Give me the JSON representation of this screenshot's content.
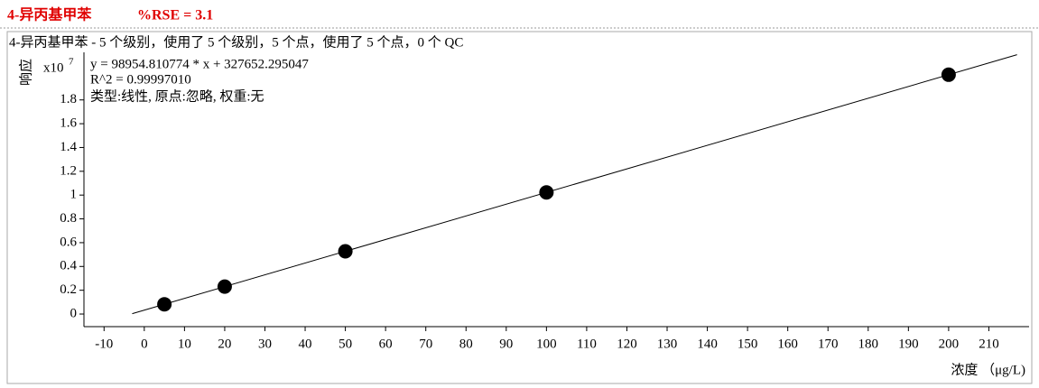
{
  "chart_data": {
    "type": "scatter",
    "title": "4-异丙基甲苯",
    "rse": "%RSE = 3.1",
    "subtitle": "4-异丙基甲苯 - 5 个级别，使用了 5 个级别，5 个点，使用了 5 个点，0 个 QC",
    "annotations": [
      "y = 98954.810774 * x  + 327652.295047",
      "R^2 = 0.99997010",
      "类型:线性, 原点:忽略, 权重:无"
    ],
    "y_label": "响应",
    "y_multiplier": {
      "base": "x10",
      "exponent": "7"
    },
    "x_label": "浓度 （μg/L)",
    "x": [
      5,
      20,
      50,
      100,
      200
    ],
    "values": [
      0.0822,
      0.2307,
      0.5275,
      1.0223,
      2.0119
    ],
    "color": "#000000",
    "fit_line": {
      "x": [
        -3,
        217
      ],
      "values": [
        0.0031,
        2.1801
      ]
    },
    "xlim": [
      -15,
      220
    ],
    "ylim": [
      -0.106,
      2.2
    ],
    "xticks": [
      -10,
      0,
      10,
      20,
      30,
      40,
      50,
      60,
      70,
      80,
      90,
      100,
      110,
      120,
      130,
      140,
      150,
      160,
      170,
      180,
      190,
      200,
      210
    ],
    "yticks": [
      0,
      0.2,
      0.4,
      0.6,
      0.8,
      1,
      1.2,
      1.4,
      1.6,
      1.8
    ]
  }
}
